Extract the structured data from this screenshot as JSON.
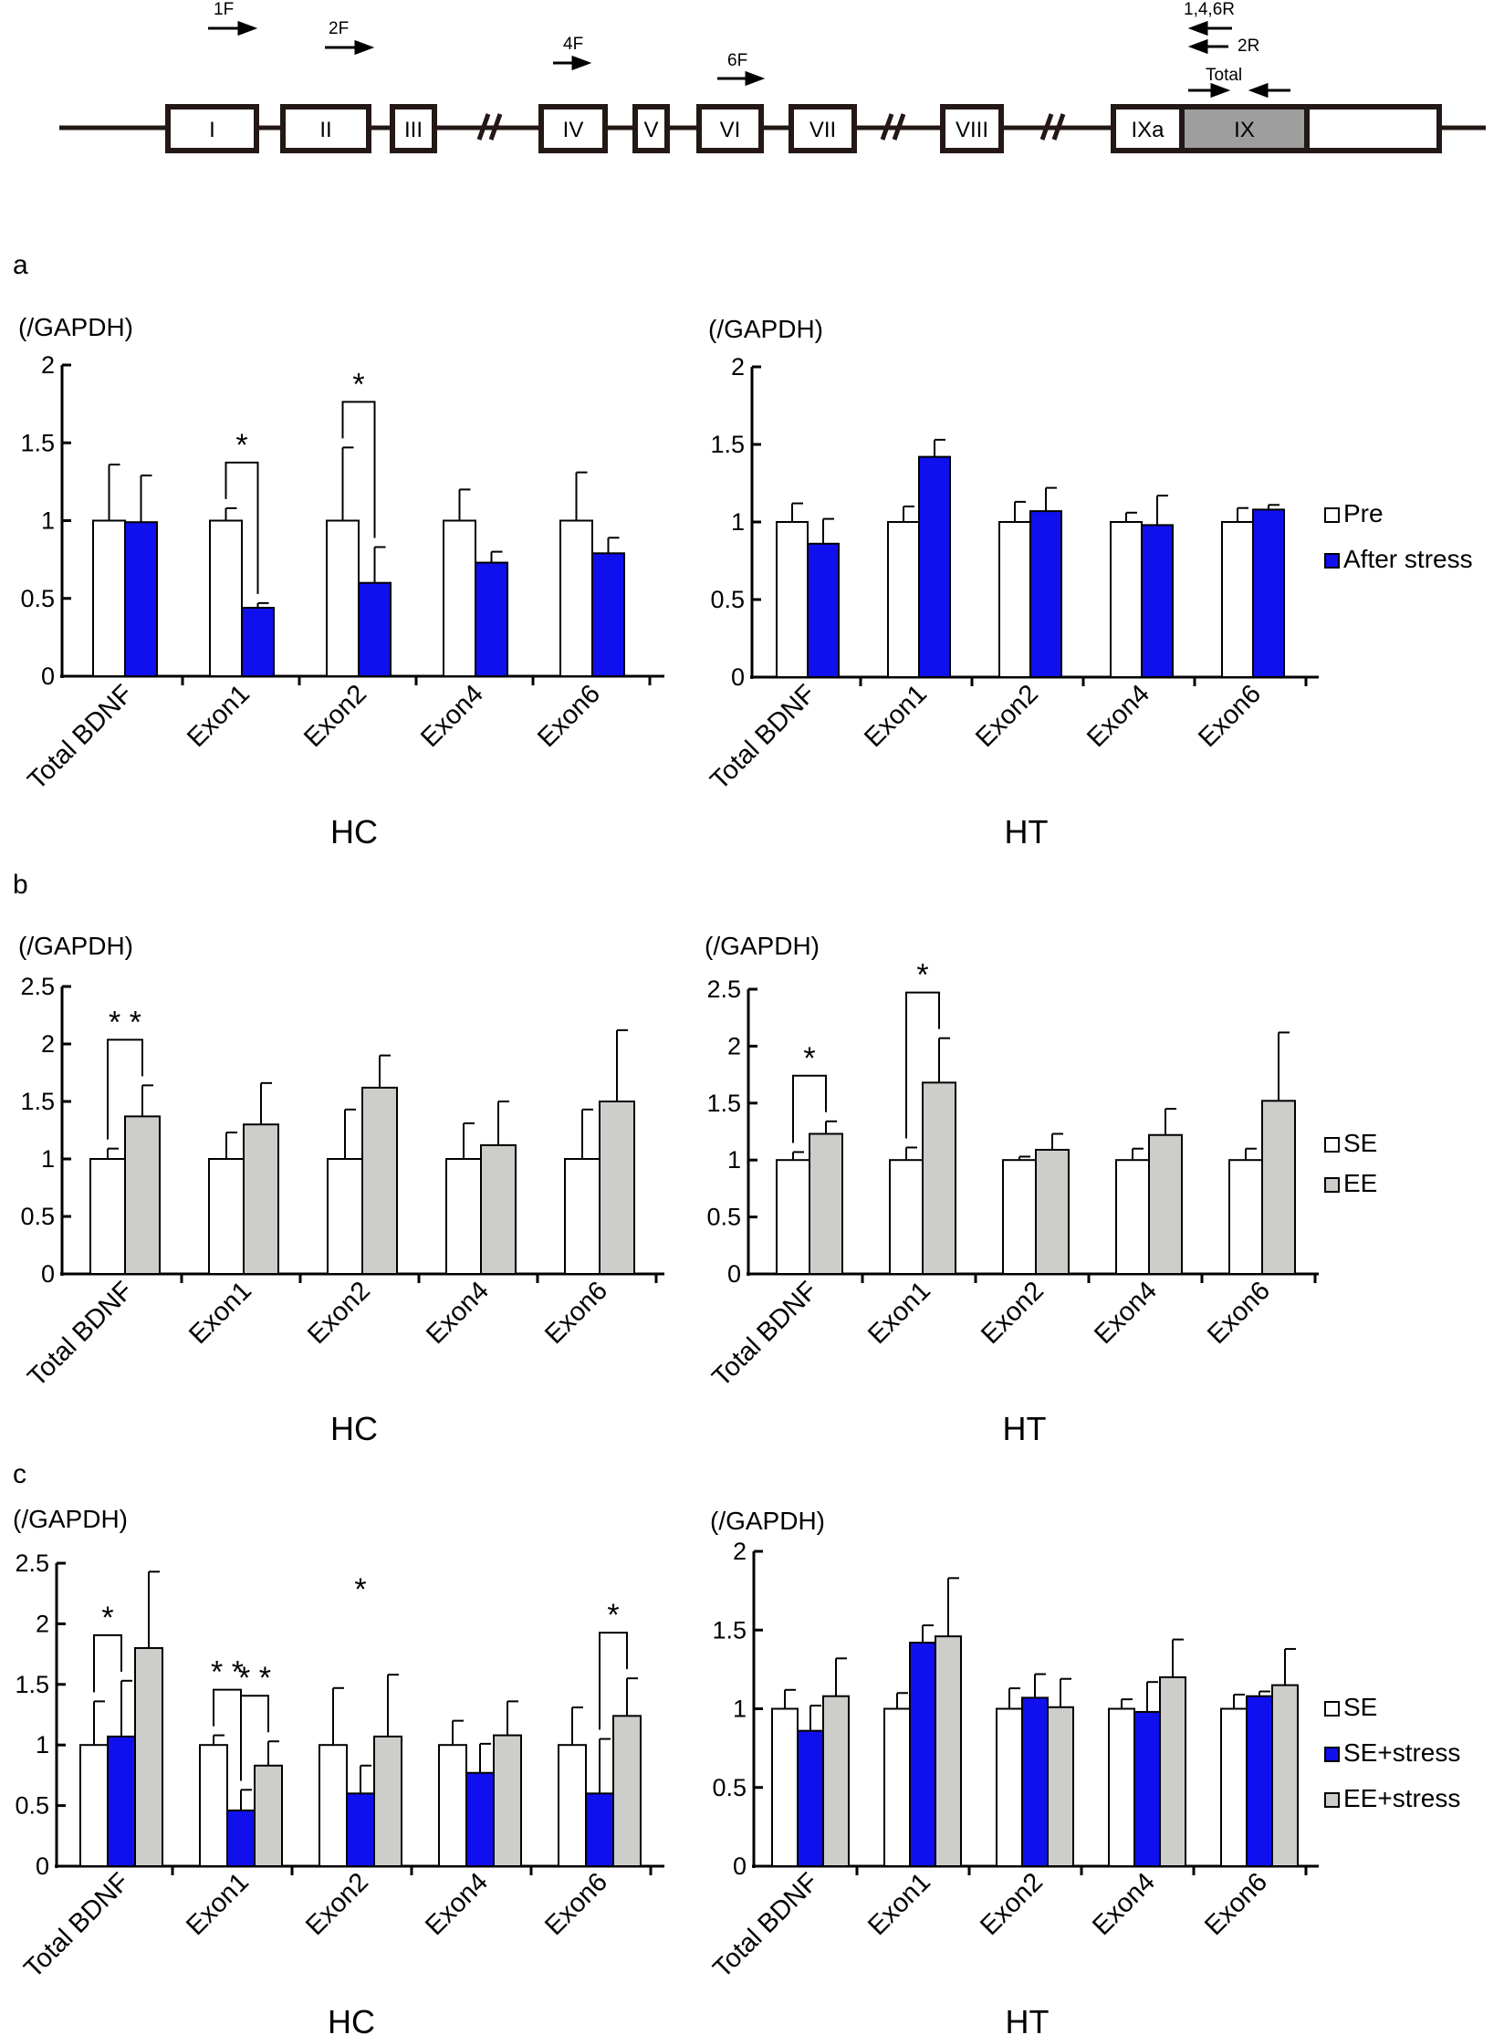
{
  "gene_diagram": {
    "exons": [
      "I",
      "II",
      "III",
      "IV",
      "V",
      "VI",
      "VII",
      "VIII",
      "IXa",
      "IX"
    ],
    "primers": {
      "p1F": "1F",
      "p2F": "2F",
      "p4F": "4F",
      "p6F": "6F",
      "p146R": "1,4,6R",
      "p2R": "2R",
      "total": "Total"
    }
  },
  "colors": {
    "white_bar": "#ffffff",
    "blue_bar": "#1010ee",
    "gray_bar": "#cdcdca",
    "exon_IX_fill": "#9e9e9e",
    "stroke": "#231815"
  },
  "panels": {
    "a": "a",
    "b": "b",
    "c": "c"
  },
  "chart_data": [
    {
      "id": "a-hc",
      "panel": "a",
      "type": "bar",
      "ylabel": "(/GAPDH)",
      "xlabel": "HC",
      "categories": [
        "Total BDNF",
        "Exon1",
        "Exon2",
        "Exon4",
        "Exon6"
      ],
      "ylim": [
        0,
        2
      ],
      "yticks": [
        "0",
        "0.5",
        "1",
        "1.5",
        "2"
      ],
      "series": [
        {
          "name": "Pre",
          "color": "#ffffff",
          "values": [
            1.0,
            1.0,
            1.0,
            1.0,
            1.0
          ],
          "errors": [
            0.36,
            0.08,
            0.47,
            0.2,
            0.31
          ]
        },
        {
          "name": "After stress",
          "color": "#1010ee",
          "values": [
            0.99,
            0.44,
            0.6,
            0.73,
            0.79
          ],
          "errors": [
            0.3,
            0.03,
            0.23,
            0.07,
            0.1
          ]
        }
      ],
      "significance": [
        {
          "group": 1,
          "from": 0,
          "to": 1,
          "label": "*"
        },
        {
          "group": 2,
          "from": 0,
          "to": 1,
          "label": "*"
        }
      ]
    },
    {
      "id": "a-ht",
      "panel": "a",
      "type": "bar",
      "ylabel": "(/GAPDH)",
      "xlabel": "HT",
      "categories": [
        "Total BDNF",
        "Exon1",
        "Exon2",
        "Exon4",
        "Exon6"
      ],
      "ylim": [
        0,
        2
      ],
      "yticks": [
        "0",
        "0.5",
        "1",
        "1.5",
        "2"
      ],
      "series": [
        {
          "name": "Pre",
          "color": "#ffffff",
          "values": [
            1.0,
            1.0,
            1.0,
            1.0,
            1.0
          ],
          "errors": [
            0.12,
            0.1,
            0.13,
            0.06,
            0.09
          ]
        },
        {
          "name": "After stress",
          "color": "#1010ee",
          "values": [
            0.86,
            1.42,
            1.07,
            0.98,
            1.08
          ],
          "errors": [
            0.16,
            0.11,
            0.15,
            0.19,
            0.03
          ]
        }
      ],
      "legend": [
        "Pre",
        "After stress"
      ]
    },
    {
      "id": "b-hc",
      "panel": "b",
      "type": "bar",
      "ylabel": "(/GAPDH)",
      "xlabel": "HC",
      "categories": [
        "Total BDNF",
        "Exon1",
        "Exon2",
        "Exon4",
        "Exon6"
      ],
      "ylim": [
        0,
        2.5
      ],
      "yticks": [
        "0",
        "0.5",
        "1",
        "1.5",
        "2",
        "2.5"
      ],
      "series": [
        {
          "name": "SE",
          "color": "#ffffff",
          "values": [
            1.0,
            1.0,
            1.0,
            1.0,
            1.0
          ],
          "errors": [
            0.09,
            0.23,
            0.43,
            0.31,
            0.43
          ]
        },
        {
          "name": "EE",
          "color": "#cdcdca",
          "values": [
            1.37,
            1.3,
            1.62,
            1.12,
            1.5
          ],
          "errors": [
            0.27,
            0.36,
            0.28,
            0.38,
            0.62
          ]
        }
      ],
      "significance": [
        {
          "group": 0,
          "from": 0,
          "to": 1,
          "label": "* *"
        }
      ]
    },
    {
      "id": "b-ht",
      "panel": "b",
      "type": "bar",
      "ylabel": "(/GAPDH)",
      "xlabel": "HT",
      "categories": [
        "Total BDNF",
        "Exon1",
        "Exon2",
        "Exon4",
        "Exon6"
      ],
      "ylim": [
        0,
        2.5
      ],
      "yticks": [
        "0",
        "0.5",
        "1",
        "1.5",
        "2",
        "2.5"
      ],
      "series": [
        {
          "name": "SE",
          "color": "#ffffff",
          "values": [
            1.0,
            1.0,
            1.0,
            1.0,
            1.0
          ],
          "errors": [
            0.07,
            0.11,
            0.03,
            0.1,
            0.1
          ]
        },
        {
          "name": "EE",
          "color": "#cdcdca",
          "values": [
            1.23,
            1.68,
            1.09,
            1.22,
            1.52
          ],
          "errors": [
            0.11,
            0.39,
            0.14,
            0.23,
            0.6
          ]
        }
      ],
      "legend": [
        "SE",
        "EE"
      ],
      "significance": [
        {
          "group": 0,
          "from": 0,
          "to": 1,
          "label": "*"
        },
        {
          "group": 1,
          "from": 0,
          "to": 1,
          "label": "*"
        }
      ]
    },
    {
      "id": "c-hc",
      "panel": "c",
      "type": "bar",
      "ylabel": "(/GAPDH)",
      "xlabel": "HC",
      "categories": [
        "Total BDNF",
        "Exon1",
        "Exon2",
        "Exon4",
        "Exon6"
      ],
      "ylim": [
        0,
        2.5
      ],
      "yticks": [
        "0",
        "0.5",
        "1",
        "1.5",
        "2",
        "2.5"
      ],
      "series": [
        {
          "name": "SE",
          "color": "#ffffff",
          "values": [
            1.0,
            1.0,
            1.0,
            1.0,
            1.0
          ],
          "errors": [
            0.36,
            0.08,
            0.47,
            0.2,
            0.31
          ]
        },
        {
          "name": "SE+stress",
          "color": "#1010ee",
          "values": [
            1.07,
            0.46,
            0.6,
            0.77,
            0.6
          ],
          "errors": [
            0.46,
            0.17,
            0.23,
            0.24,
            0.45
          ]
        },
        {
          "name": "EE+stress",
          "color": "#cdcdca",
          "values": [
            1.8,
            0.83,
            1.07,
            1.08,
            1.24
          ],
          "errors": [
            0.63,
            0.2,
            0.51,
            0.28,
            0.31
          ]
        }
      ],
      "significance": [
        {
          "group": 0,
          "from": 0,
          "to": 1,
          "label": "*"
        },
        {
          "group": 1,
          "from": 0,
          "to": 1,
          "label": "* *"
        },
        {
          "group": 1,
          "from": 1,
          "to": 2,
          "label": "* *"
        },
        {
          "group": 4,
          "from": 1,
          "to": 2,
          "label": "*"
        }
      ],
      "annotations": [
        "*"
      ]
    },
    {
      "id": "c-ht",
      "panel": "c",
      "type": "bar",
      "ylabel": "(/GAPDH)",
      "xlabel": "HT",
      "categories": [
        "Total BDNF",
        "Exon1",
        "Exon2",
        "Exon4",
        "Exon6"
      ],
      "ylim": [
        0,
        2
      ],
      "yticks": [
        "0",
        "0.5",
        "1",
        "1.5",
        "2"
      ],
      "series": [
        {
          "name": "SE",
          "color": "#ffffff",
          "values": [
            1.0,
            1.0,
            1.0,
            1.0,
            1.0
          ],
          "errors": [
            0.12,
            0.1,
            0.13,
            0.06,
            0.09
          ]
        },
        {
          "name": "SE+stress",
          "color": "#1010ee",
          "values": [
            0.86,
            1.42,
            1.07,
            0.98,
            1.08
          ],
          "errors": [
            0.16,
            0.11,
            0.15,
            0.19,
            0.03
          ]
        },
        {
          "name": "EE+stress",
          "color": "#cdcdca",
          "values": [
            1.08,
            1.46,
            1.01,
            1.2,
            1.15
          ],
          "errors": [
            0.24,
            0.37,
            0.18,
            0.24,
            0.23
          ]
        }
      ],
      "legend": [
        "SE",
        "SE+stress",
        "EE+stress"
      ]
    }
  ]
}
